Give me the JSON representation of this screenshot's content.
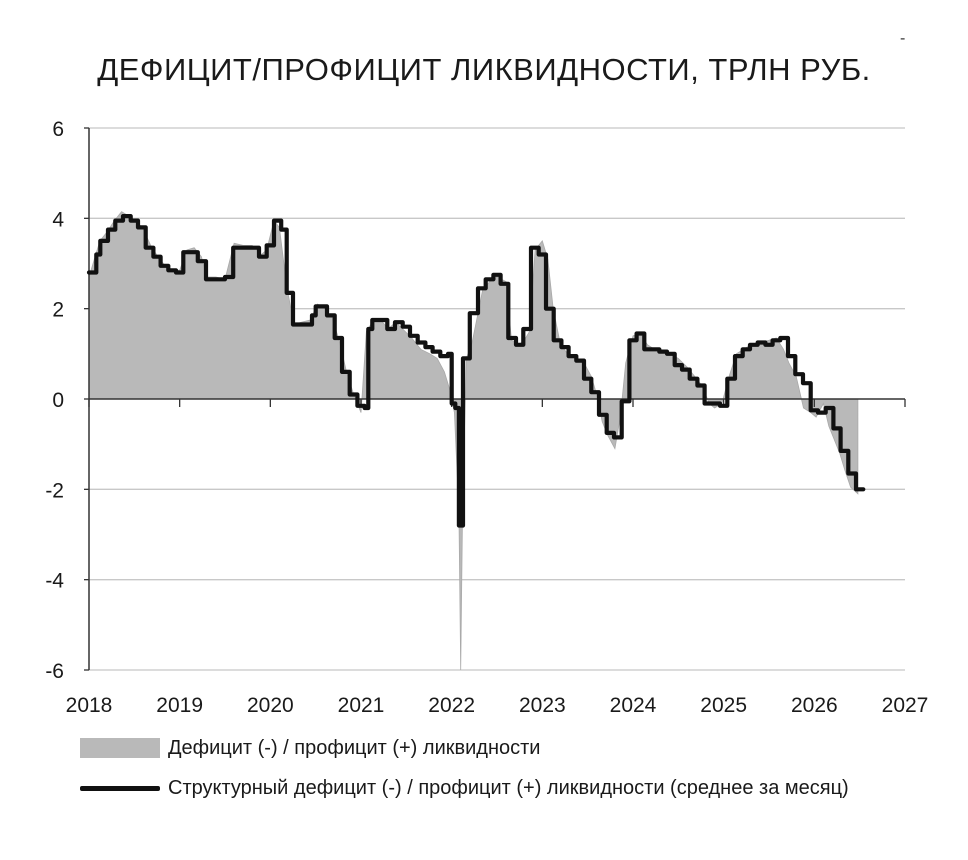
{
  "chart_data": {
    "type": "area",
    "title": "ДЕФИЦИТ/ПРОФИЦИТ ЛИКВИДНОСТИ, ТРЛН РУБ.",
    "xlabel": "",
    "ylabel": "",
    "xlim": [
      2018,
      2027
    ],
    "ylim": [
      -6,
      6
    ],
    "x_ticks": [
      "2018",
      "2019",
      "2020",
      "2021",
      "2022",
      "2023",
      "2024",
      "2025",
      "2026",
      "2027"
    ],
    "y_ticks": [
      "6",
      "4",
      "2",
      "0",
      "-2",
      "-4",
      "-6"
    ],
    "grid": "horizontal",
    "legend_position": "bottom",
    "colors": {
      "area": "#b9b9b9",
      "line": "#111111",
      "grid": "#c8c8c8"
    },
    "series": [
      {
        "name": "Дефицит (-) / профицит (+) ликвидности",
        "type": "area",
        "points": [
          [
            2018.0,
            2.7
          ],
          [
            2018.06,
            3.1
          ],
          [
            2018.12,
            3.5
          ],
          [
            2018.2,
            3.7
          ],
          [
            2018.28,
            3.95
          ],
          [
            2018.36,
            4.15
          ],
          [
            2018.44,
            4.05
          ],
          [
            2018.52,
            3.95
          ],
          [
            2018.6,
            3.75
          ],
          [
            2018.68,
            3.4
          ],
          [
            2018.76,
            3.15
          ],
          [
            2018.84,
            2.95
          ],
          [
            2018.92,
            2.85
          ],
          [
            2019.0,
            2.85
          ],
          [
            2019.08,
            3.3
          ],
          [
            2019.16,
            3.35
          ],
          [
            2019.24,
            3.15
          ],
          [
            2019.3,
            2.7
          ],
          [
            2019.4,
            2.7
          ],
          [
            2019.5,
            2.65
          ],
          [
            2019.6,
            3.45
          ],
          [
            2019.7,
            3.4
          ],
          [
            2019.8,
            3.4
          ],
          [
            2019.9,
            3.2
          ],
          [
            2019.96,
            3.3
          ],
          [
            2020.04,
            3.95
          ],
          [
            2020.1,
            3.8
          ],
          [
            2020.18,
            2.5
          ],
          [
            2020.26,
            1.65
          ],
          [
            2020.34,
            1.7
          ],
          [
            2020.44,
            1.75
          ],
          [
            2020.52,
            2.1
          ],
          [
            2020.6,
            2.0
          ],
          [
            2020.68,
            1.8
          ],
          [
            2020.76,
            1.3
          ],
          [
            2020.84,
            0.6
          ],
          [
            2020.92,
            0.1
          ],
          [
            2021.0,
            -0.3
          ],
          [
            2021.06,
            1.5
          ],
          [
            2021.14,
            1.75
          ],
          [
            2021.22,
            1.75
          ],
          [
            2021.3,
            1.55
          ],
          [
            2021.38,
            1.7
          ],
          [
            2021.46,
            1.55
          ],
          [
            2021.56,
            1.35
          ],
          [
            2021.66,
            1.1
          ],
          [
            2021.76,
            1.0
          ],
          [
            2021.84,
            0.9
          ],
          [
            2021.92,
            0.6
          ],
          [
            2021.98,
            0.2
          ],
          [
            2022.03,
            -0.3
          ],
          [
            2022.08,
            -2.5
          ],
          [
            2022.1,
            -6.0
          ],
          [
            2022.12,
            -2.6
          ],
          [
            2022.16,
            0.9
          ],
          [
            2022.22,
            1.2
          ],
          [
            2022.28,
            1.8
          ],
          [
            2022.34,
            2.4
          ],
          [
            2022.42,
            2.6
          ],
          [
            2022.5,
            2.7
          ],
          [
            2022.6,
            2.6
          ],
          [
            2022.66,
            1.3
          ],
          [
            2022.74,
            1.2
          ],
          [
            2022.8,
            1.3
          ],
          [
            2022.86,
            1.5
          ],
          [
            2022.92,
            3.3
          ],
          [
            2023.0,
            3.5
          ],
          [
            2023.06,
            3.1
          ],
          [
            2023.12,
            2.0
          ],
          [
            2023.2,
            1.2
          ],
          [
            2023.28,
            1.0
          ],
          [
            2023.38,
            0.9
          ],
          [
            2023.46,
            0.8
          ],
          [
            2023.54,
            0.5
          ],
          [
            2023.6,
            0.1
          ],
          [
            2023.66,
            -0.5
          ],
          [
            2023.72,
            -0.8
          ],
          [
            2023.8,
            -1.1
          ],
          [
            2023.86,
            -0.4
          ],
          [
            2023.92,
            0.8
          ],
          [
            2024.0,
            1.4
          ],
          [
            2024.08,
            1.45
          ],
          [
            2024.16,
            1.2
          ],
          [
            2024.24,
            1.1
          ],
          [
            2024.32,
            1.05
          ],
          [
            2024.4,
            1.0
          ],
          [
            2024.5,
            0.9
          ],
          [
            2024.6,
            0.7
          ],
          [
            2024.68,
            0.5
          ],
          [
            2024.76,
            0.3
          ],
          [
            2024.84,
            -0.1
          ],
          [
            2024.9,
            -0.2
          ],
          [
            2024.98,
            -0.1
          ],
          [
            2025.06,
            0.5
          ],
          [
            2025.14,
            1.0
          ],
          [
            2025.22,
            1.1
          ],
          [
            2025.3,
            1.2
          ],
          [
            2025.4,
            1.25
          ],
          [
            2025.5,
            1.3
          ],
          [
            2025.58,
            1.35
          ],
          [
            2025.66,
            1.1
          ],
          [
            2025.72,
            0.8
          ],
          [
            2025.8,
            0.5
          ],
          [
            2025.88,
            -0.2
          ],
          [
            2025.96,
            -0.3
          ],
          [
            2026.02,
            -0.4
          ],
          [
            2026.1,
            -0.1
          ],
          [
            2026.16,
            -0.6
          ],
          [
            2026.22,
            -0.9
          ],
          [
            2026.28,
            -1.2
          ],
          [
            2026.34,
            -1.6
          ],
          [
            2026.4,
            -1.95
          ],
          [
            2026.48,
            -2.1
          ]
        ]
      },
      {
        "name": "Структурный дефицит (-) / профицит (+) ликвидности (среднее за месяц)",
        "type": "step",
        "points": [
          [
            2018.0,
            2.8
          ],
          [
            2018.08,
            3.2
          ],
          [
            2018.125,
            3.5
          ],
          [
            2018.21,
            3.75
          ],
          [
            2018.29,
            3.95
          ],
          [
            2018.375,
            4.05
          ],
          [
            2018.46,
            3.95
          ],
          [
            2018.54,
            3.8
          ],
          [
            2018.625,
            3.35
          ],
          [
            2018.71,
            3.15
          ],
          [
            2018.79,
            2.95
          ],
          [
            2018.875,
            2.85
          ],
          [
            2018.96,
            2.8
          ],
          [
            2019.04,
            3.25
          ],
          [
            2019.2,
            3.05
          ],
          [
            2019.29,
            2.65
          ],
          [
            2019.5,
            2.7
          ],
          [
            2019.59,
            3.35
          ],
          [
            2019.875,
            3.15
          ],
          [
            2019.96,
            3.4
          ],
          [
            2020.04,
            3.95
          ],
          [
            2020.12,
            3.75
          ],
          [
            2020.18,
            2.35
          ],
          [
            2020.25,
            1.65
          ],
          [
            2020.46,
            1.85
          ],
          [
            2020.5,
            2.05
          ],
          [
            2020.625,
            1.85
          ],
          [
            2020.71,
            1.35
          ],
          [
            2020.79,
            0.6
          ],
          [
            2020.875,
            0.1
          ],
          [
            2020.96,
            -0.15
          ],
          [
            2021.04,
            -0.2
          ],
          [
            2021.08,
            1.55
          ],
          [
            2021.125,
            1.75
          ],
          [
            2021.29,
            1.55
          ],
          [
            2021.375,
            1.7
          ],
          [
            2021.46,
            1.6
          ],
          [
            2021.54,
            1.4
          ],
          [
            2021.625,
            1.25
          ],
          [
            2021.71,
            1.15
          ],
          [
            2021.79,
            1.05
          ],
          [
            2021.875,
            0.95
          ],
          [
            2021.96,
            1.0
          ],
          [
            2022.0,
            -0.1
          ],
          [
            2022.04,
            -0.2
          ],
          [
            2022.08,
            -2.8
          ],
          [
            2022.2,
            1.9
          ],
          [
            2022.125,
            0.9
          ],
          [
            2022.29,
            2.45
          ],
          [
            2022.375,
            2.65
          ],
          [
            2022.46,
            2.75
          ],
          [
            2022.54,
            2.55
          ],
          [
            2022.625,
            1.35
          ],
          [
            2022.71,
            1.2
          ],
          [
            2022.79,
            1.55
          ],
          [
            2022.875,
            3.35
          ],
          [
            2022.96,
            3.2
          ],
          [
            2023.04,
            2.0
          ],
          [
            2023.125,
            1.3
          ],
          [
            2023.21,
            1.15
          ],
          [
            2023.29,
            0.95
          ],
          [
            2023.375,
            0.85
          ],
          [
            2023.46,
            0.45
          ],
          [
            2023.54,
            0.15
          ],
          [
            2023.625,
            -0.35
          ],
          [
            2023.71,
            -0.75
          ],
          [
            2023.79,
            -0.85
          ],
          [
            2023.875,
            -0.05
          ],
          [
            2023.96,
            1.3
          ],
          [
            2024.04,
            1.45
          ],
          [
            2024.125,
            1.1
          ],
          [
            2024.29,
            1.05
          ],
          [
            2024.375,
            1.0
          ],
          [
            2024.46,
            0.75
          ],
          [
            2024.54,
            0.65
          ],
          [
            2024.625,
            0.45
          ],
          [
            2024.71,
            0.3
          ],
          [
            2024.79,
            -0.1
          ],
          [
            2024.875,
            -0.1
          ],
          [
            2024.96,
            -0.15
          ],
          [
            2025.04,
            0.45
          ],
          [
            2025.125,
            0.95
          ],
          [
            2025.21,
            1.1
          ],
          [
            2025.29,
            1.2
          ],
          [
            2025.375,
            1.25
          ],
          [
            2025.46,
            1.2
          ],
          [
            2025.54,
            1.3
          ],
          [
            2025.625,
            1.35
          ],
          [
            2025.71,
            0.95
          ],
          [
            2025.79,
            0.55
          ],
          [
            2025.875,
            0.35
          ],
          [
            2025.96,
            -0.25
          ],
          [
            2026.04,
            -0.3
          ],
          [
            2026.125,
            -0.2
          ],
          [
            2026.21,
            -0.65
          ],
          [
            2026.29,
            -1.15
          ],
          [
            2026.375,
            -1.65
          ],
          [
            2026.46,
            -2.0
          ],
          [
            2026.54,
            -2.0
          ]
        ]
      }
    ]
  }
}
